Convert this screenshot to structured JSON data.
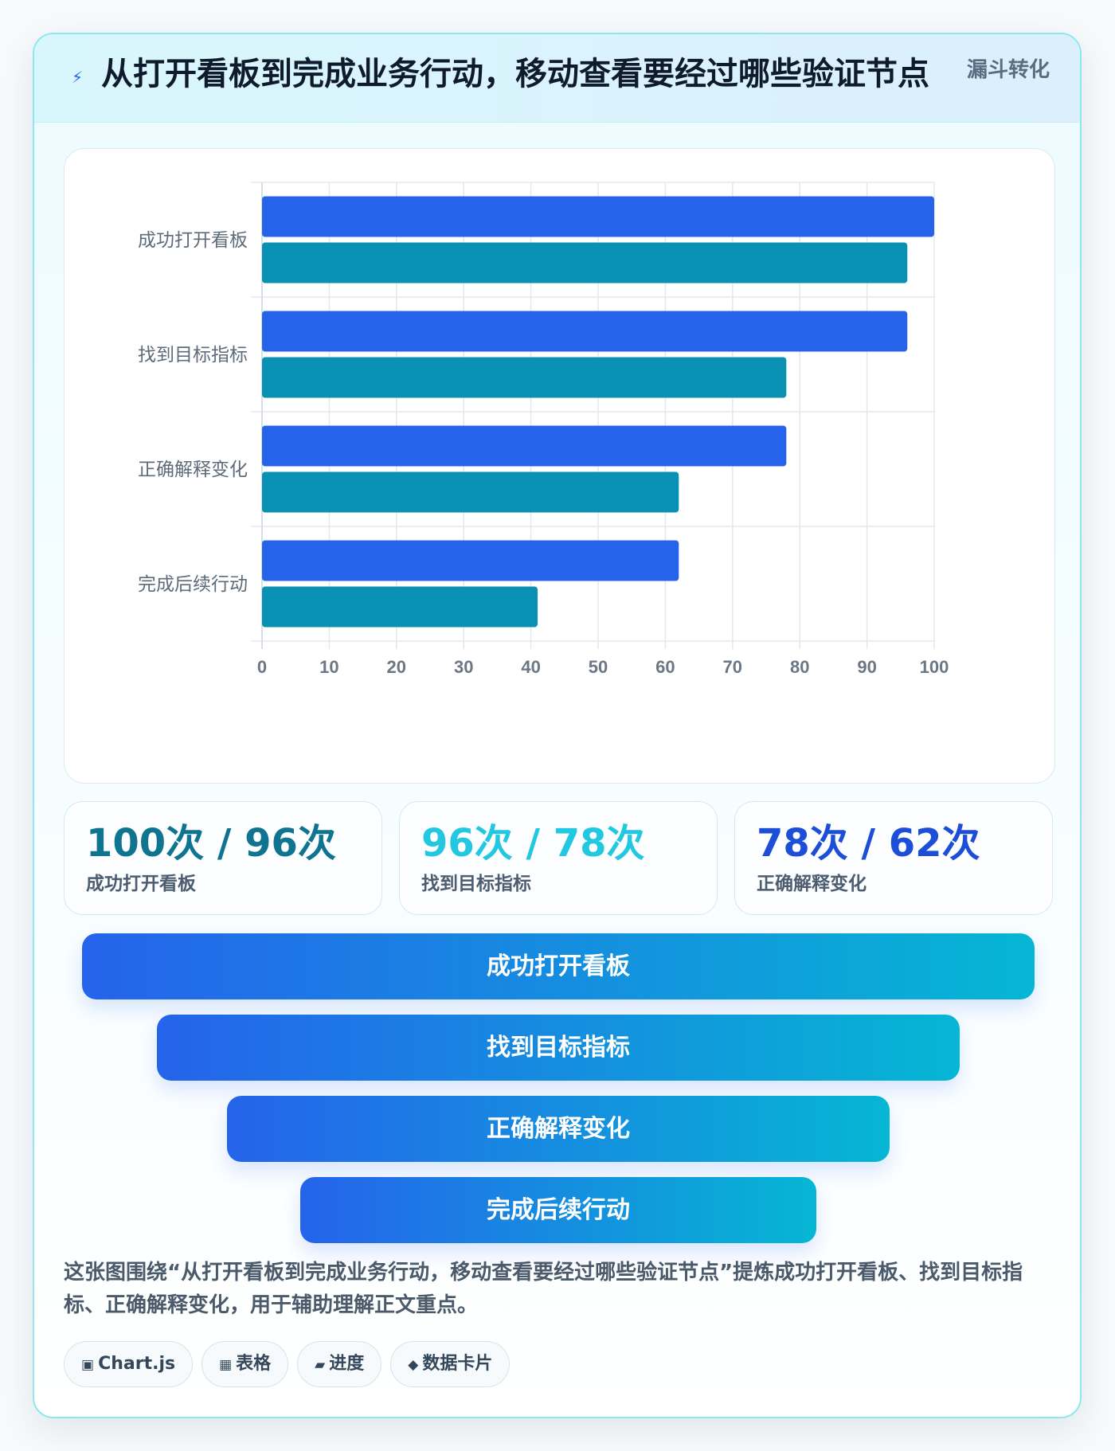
{
  "header": {
    "title": "从打开看板到完成业务行动，移动查看要经过哪些验证节点",
    "badge": "漏斗转化",
    "icon": "lightning-icon"
  },
  "chart_data": {
    "type": "bar",
    "orientation": "horizontal",
    "categories": [
      "成功打开看板",
      "找到目标指标",
      "正确解释变化",
      "完成后续行动"
    ],
    "series": [
      {
        "values": [
          100,
          96,
          78,
          62
        ],
        "color": "#2563eb"
      },
      {
        "values": [
          96,
          78,
          62,
          41
        ],
        "color": "#0891b2"
      }
    ],
    "xlim": [
      0,
      100
    ],
    "xticks": [
      0,
      10,
      20,
      30,
      40,
      50,
      60,
      70,
      80,
      90,
      100
    ],
    "grid": true,
    "legend": "none"
  },
  "stats": [
    {
      "value": "100次 / 96次",
      "label": "成功打开看板",
      "color": "#0e7490"
    },
    {
      "value": "96次 / 78次",
      "label": "找到目标指标",
      "color": "#22c7e0"
    },
    {
      "value": "78次 / 62次",
      "label": "正确解释变化",
      "color": "#1d4ed8"
    }
  ],
  "funnel": [
    {
      "label": "成功打开看板"
    },
    {
      "label": "找到目标指标"
    },
    {
      "label": "正确解释变化"
    },
    {
      "label": "完成后续行动"
    }
  ],
  "description": "这张图围绕“从打开看板到完成业务行动，移动查看要经过哪些验证节点”提炼成功打开看板、找到目标指标、正确解释变化，用于辅助理解正文重点。",
  "tags": [
    {
      "icon": "▣",
      "label": "Chart.js",
      "icon_name": "chip-icon"
    },
    {
      "icon": "▦",
      "label": "表格",
      "icon_name": "table-icon"
    },
    {
      "icon": "▰",
      "label": "进度",
      "icon_name": "progress-icon"
    },
    {
      "icon": "◆",
      "label": "数据卡片",
      "icon_name": "diamond-icon"
    }
  ]
}
